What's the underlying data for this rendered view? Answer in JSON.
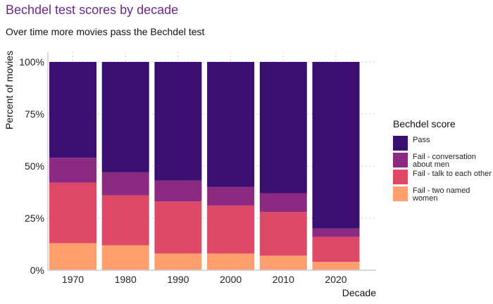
{
  "title": "Bechdel test scores by decade",
  "subtitle": "Over time more movies pass the Bechdel test",
  "chart_data": {
    "type": "bar",
    "stacked": true,
    "percent": true,
    "categories": [
      "1970",
      "1980",
      "1990",
      "2000",
      "2010",
      "2020"
    ],
    "series": [
      {
        "name": "Fail - two named women",
        "color": "#fe9f6d",
        "values": [
          13,
          12,
          8,
          8,
          7,
          4
        ]
      },
      {
        "name": "Fail - talk to each other",
        "color": "#de4968",
        "values": [
          29,
          24,
          25,
          23,
          21,
          12
        ]
      },
      {
        "name": "Fail - conversation about men",
        "color": "#8c2981",
        "values": [
          12,
          11,
          10,
          9,
          9,
          4
        ]
      },
      {
        "name": "Pass",
        "color": "#3b0f70",
        "values": [
          46,
          53,
          57,
          60,
          63,
          80
        ]
      }
    ],
    "xlabel": "Decade",
    "ylabel": "Percent of movies",
    "ylim": [
      0,
      100
    ],
    "yticks": [
      "0%",
      "25%",
      "50%",
      "75%",
      "100%"
    ],
    "grid": true,
    "legend_title": "Bechdel score",
    "legend_position": "right",
    "legend_entries": [
      {
        "label": "Pass",
        "color": "#3b0f70"
      },
      {
        "label": "Fail - conversation about men",
        "color": "#8c2981"
      },
      {
        "label": "Fail - talk to each other",
        "color": "#de4968"
      },
      {
        "label": "Fail - two named women",
        "color": "#fe9f6d"
      }
    ]
  }
}
